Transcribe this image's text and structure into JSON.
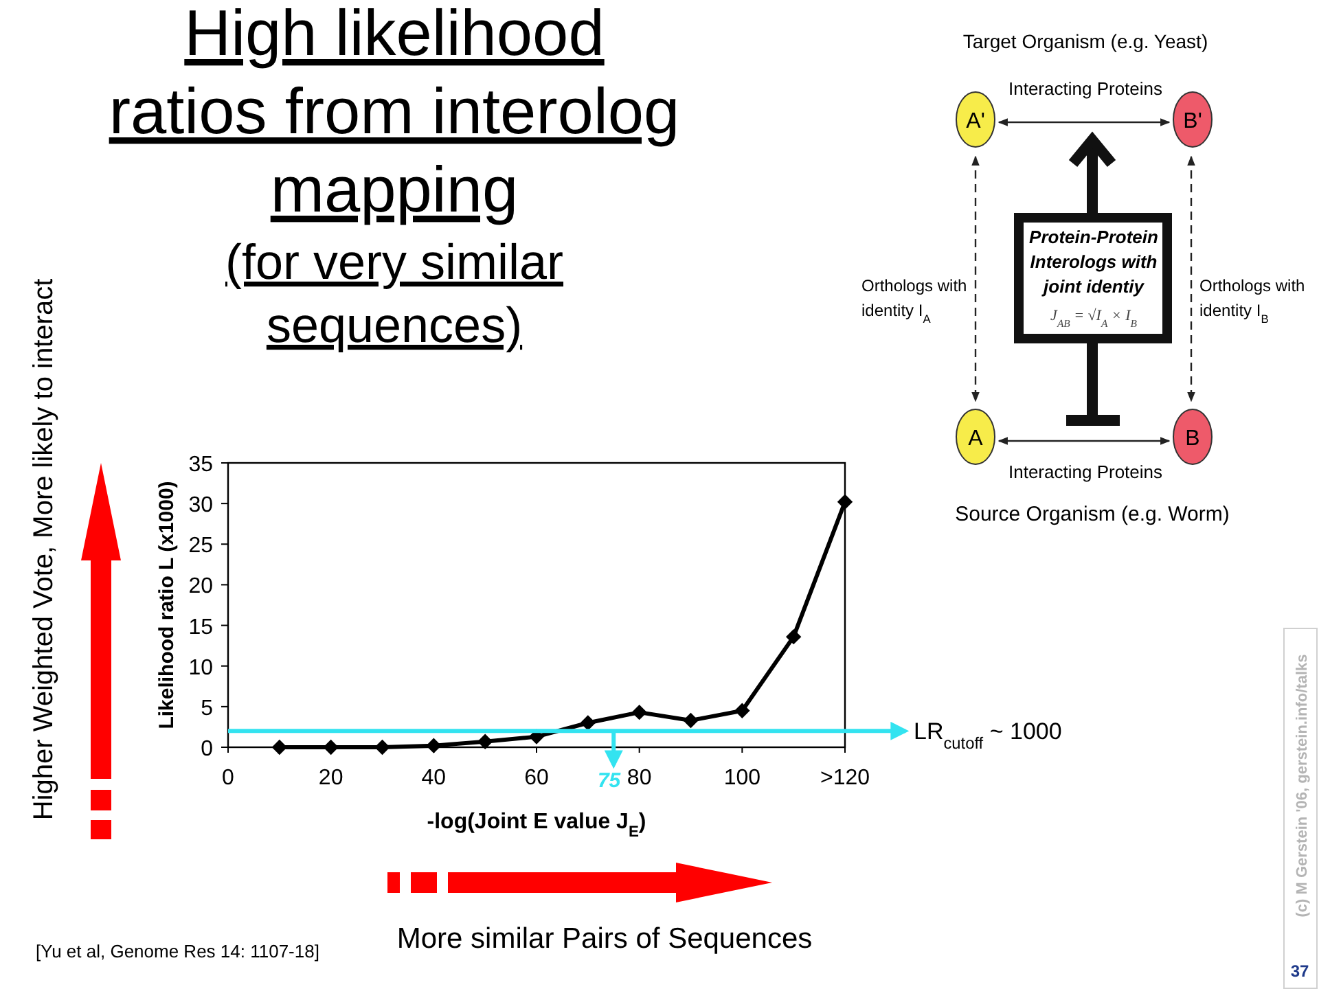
{
  "chart_data": [
    {
      "type": "line",
      "title": "High likelihood ratios from interolog mapping",
      "subtitle": "(for very similar sequences)",
      "xlabel": "-log(Joint E value J$_{E}$)",
      "ylabel": "Likelihood ratio L (x1000)",
      "x": [
        10,
        20,
        30,
        40,
        50,
        60,
        70,
        80,
        90,
        100,
        110,
        120
      ],
      "series": [
        {
          "color": "#000000",
          "values": [
            0,
            0,
            0,
            0.2,
            0.7,
            1.3,
            3.0,
            4.3,
            3.3,
            4.5,
            13.6,
            30.2
          ]
        }
      ],
      "xlim": [
        0,
        120
      ],
      "ylim": [
        0,
        35
      ],
      "xticks": [
        0,
        20,
        40,
        60,
        80,
        100,
        {
          "value": 120,
          "label": ">120"
        }
      ],
      "yticks": [
        0,
        5,
        10,
        15,
        20,
        25,
        30,
        35
      ],
      "marker": "diamond",
      "ref_lines": [
        {
          "axis": "y",
          "value": 2,
          "label": "LR$_{cutoff}$ ~ 1000",
          "color": "#33e3f0"
        },
        {
          "axis": "x",
          "value": 75,
          "label": "75",
          "color": "#33e3f0"
        }
      ],
      "annotations": [
        "Higher Weighted Vote, More likely to interact",
        "More similar Pairs of Sequences",
        "[Yu et al, Genome Res 14: 1107-18]",
        "(c) M Gerstein '06, gerstein.info/talks",
        "37"
      ]
    },
    {
      "type": "other",
      "annotations": [
        "Target Organism (e.g. Yeast)",
        "Interacting Proteins",
        "A'",
        "B'",
        "Orthologs with identity I$_{A}$",
        "Protein-Protein Interologs with joint identiy",
        "J$_{AB}$ = √I$_{A}$ × I$_{B}$",
        "Orthologs with identity I$_{B}$",
        "A",
        "B",
        "Interacting Proteins",
        "Source Organism (e.g. Worm)"
      ]
    }
  ]
}
